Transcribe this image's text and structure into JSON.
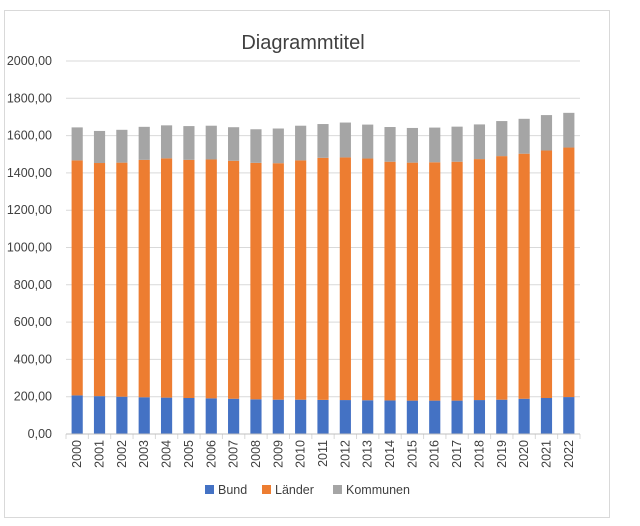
{
  "chart_data": {
    "type": "bar",
    "stacked": true,
    "title": "Diagrammtitel",
    "xlabel": "",
    "ylabel": "",
    "ylim": [
      0,
      2000
    ],
    "yticks": [
      0,
      200,
      400,
      600,
      800,
      1000,
      1200,
      1400,
      1600,
      1800,
      2000
    ],
    "ytick_labels": [
      "0,00",
      "200,00",
      "400,00",
      "600,00",
      "800,00",
      "1000,00",
      "1200,00",
      "1400,00",
      "1600,00",
      "1800,00",
      "2000,00"
    ],
    "grid": true,
    "legend_position": "bottom",
    "categories": [
      "2000",
      "2001",
      "2002",
      "2003",
      "2004",
      "2005",
      "2006",
      "2007",
      "2008",
      "2009",
      "2010",
      "2011",
      "2012",
      "2013",
      "2014",
      "2015",
      "2016",
      "2017",
      "2018",
      "2019",
      "2020",
      "2021",
      "2022"
    ],
    "series": [
      {
        "name": "Bund",
        "color": "#4472c4",
        "values": [
          207,
          203,
          200,
          197,
          195,
          193,
          191,
          189,
          186,
          184,
          184,
          183,
          182,
          181,
          180,
          179,
          179,
          179,
          182,
          184,
          189,
          193,
          198
        ]
      },
      {
        "name": "Länder",
        "color": "#ed7d31",
        "values": [
          1260,
          1250,
          1255,
          1273,
          1283,
          1277,
          1281,
          1276,
          1268,
          1268,
          1283,
          1298,
          1301,
          1296,
          1280,
          1276,
          1278,
          1281,
          1292,
          1306,
          1314,
          1327,
          1338
        ]
      },
      {
        "name": "Kommunen",
        "color": "#a5a5a5",
        "values": [
          177,
          172,
          176,
          177,
          177,
          181,
          181,
          180,
          180,
          186,
          186,
          181,
          187,
          182,
          186,
          186,
          186,
          188,
          186,
          188,
          187,
          190,
          186
        ]
      }
    ]
  }
}
